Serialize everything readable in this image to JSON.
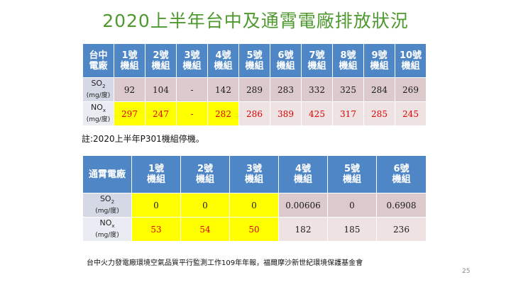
{
  "title": "2020上半年台中及通霄電廠排放狀況",
  "table1": {
    "header": [
      "台中\n電廠",
      "1號\n機組",
      "2號\n機組",
      "3號\n機組",
      "4號\n機組",
      "5號\n機組",
      "6號\n機組",
      "7號\n機組",
      "8號\n機組",
      "9號\n機組",
      "10號\n機組"
    ],
    "rows": [
      {
        "pollutant": "SO",
        "sub": "2",
        "unit": "(mg/度)",
        "values": [
          "92",
          "104",
          "-",
          "142",
          "289",
          "283",
          "332",
          "325",
          "284",
          "269"
        ]
      },
      {
        "pollutant": "NO",
        "sub": "x",
        "unit": "(mg/度)",
        "values": [
          "297",
          "247",
          "-",
          "282",
          "286",
          "389",
          "425",
          "317",
          "285",
          "245"
        ]
      }
    ]
  },
  "note": "註:2020上半年P301機組停機。",
  "table2": {
    "header": [
      "通霄電廠",
      "1號\n機組",
      "2號\n機組",
      "3號\n機組",
      "4號\n機組",
      "5號\n機組",
      "6號\n機組"
    ],
    "rows": [
      {
        "pollutant": "SO",
        "sub": "2",
        "unit": "(mg/度)",
        "values": [
          "0",
          "0",
          "0",
          "0.00606",
          "0",
          "0.6908"
        ]
      },
      {
        "pollutant": "NO",
        "sub": "x",
        "unit": "(mg/度)",
        "values": [
          "53",
          "54",
          "50",
          "182",
          "185",
          "236"
        ]
      }
    ]
  },
  "source": "台中火力發電廠環境空氣品質平行監測工作109年年報，福爾摩沙新世紀環境保護基金會",
  "page_number": "25",
  "colors": {
    "title": "#4e9a2f",
    "header": "#4f86c6",
    "highlight": "#ffff00",
    "red_text": "#e00000"
  }
}
